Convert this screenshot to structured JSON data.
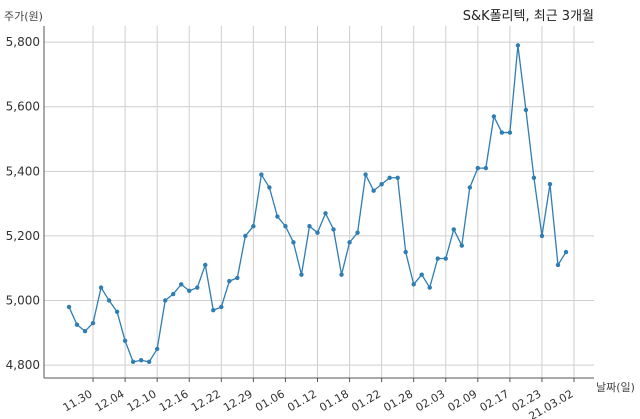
{
  "chart_data": {
    "type": "line",
    "title": "S&K폴리텍, 최근 3개월",
    "ylabel": "주가(원)",
    "xlabel": "날짜(일)",
    "ylim": [
      4760,
      5850
    ],
    "yticks": [
      4800,
      5000,
      5200,
      5400,
      5600,
      5800
    ],
    "ytick_labels": [
      "4,800",
      "5,000",
      "5,200",
      "5,400",
      "5,600",
      "5,800"
    ],
    "xticks": [
      {
        "index": 3,
        "label": "11.30"
      },
      {
        "index": 7,
        "label": "12.04"
      },
      {
        "index": 11,
        "label": "12.10"
      },
      {
        "index": 15,
        "label": "12.16"
      },
      {
        "index": 19,
        "label": "12.22"
      },
      {
        "index": 23,
        "label": "12.29"
      },
      {
        "index": 27,
        "label": "01.06"
      },
      {
        "index": 31,
        "label": "01.12"
      },
      {
        "index": 35,
        "label": "01.18"
      },
      {
        "index": 39,
        "label": "01.22"
      },
      {
        "index": 43,
        "label": "01.28"
      },
      {
        "index": 47,
        "label": "02.03"
      },
      {
        "index": 51,
        "label": "02.09"
      },
      {
        "index": 55,
        "label": "02.17"
      },
      {
        "index": 59,
        "label": "02.23"
      },
      {
        "index": 63,
        "label": "21.03.02"
      }
    ],
    "grid": true,
    "series": [
      {
        "color": "#2e7db3",
        "values": [
          4980,
          4925,
          4905,
          4930,
          5040,
          5000,
          4965,
          4875,
          4810,
          4815,
          4810,
          4850,
          5000,
          5020,
          5050,
          5030,
          5040,
          5110,
          4970,
          4980,
          5060,
          5070,
          5200,
          5230,
          5390,
          5350,
          5260,
          5230,
          5180,
          5080,
          5230,
          5210,
          5270,
          5220,
          5080,
          5180,
          5210,
          5390,
          5340,
          5360,
          5380,
          5380,
          5150,
          5050,
          5080,
          5040,
          5130,
          5130,
          5220,
          5170,
          5350,
          5410,
          5410,
          5570,
          5520,
          5520,
          5790,
          5590,
          5380,
          5200,
          5360,
          5110,
          5150
        ]
      }
    ]
  }
}
